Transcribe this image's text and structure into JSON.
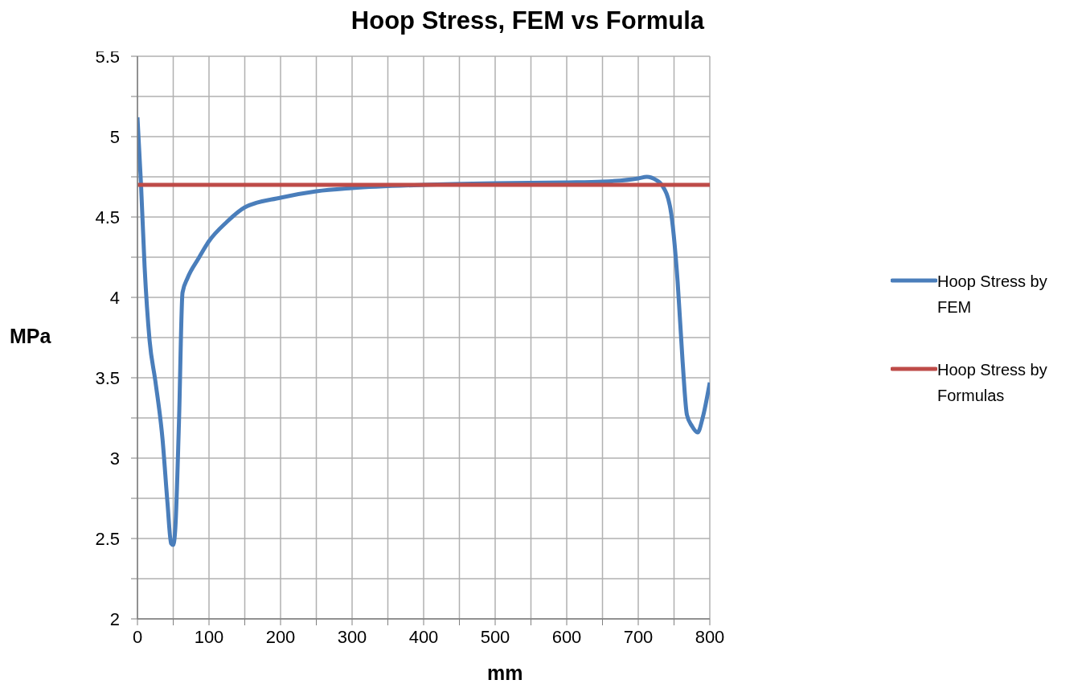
{
  "chart_data": {
    "type": "line",
    "title": "Hoop Stress, FEM vs Formula",
    "xlabel": "mm",
    "ylabel": "MPa",
    "xlim": [
      0,
      800
    ],
    "xticks": [
      0,
      {
        "value": 50,
        "label": null
      },
      100,
      {
        "value": 150,
        "label": null
      },
      200,
      {
        "value": 250,
        "label": null
      },
      300,
      {
        "value": 350,
        "label": null
      },
      400,
      {
        "value": 450,
        "label": null
      },
      500,
      {
        "value": 550,
        "label": null
      },
      600,
      {
        "value": 650,
        "label": null
      },
      700,
      {
        "value": 750,
        "label": null
      },
      800
    ],
    "ylim": [
      2,
      5.5
    ],
    "yticks": [
      2,
      {
        "value": 2.25,
        "label": null
      },
      2.5,
      {
        "value": 2.75,
        "label": null
      },
      3,
      {
        "value": 3.25,
        "label": null
      },
      3.5,
      {
        "value": 3.75,
        "label": null
      },
      4,
      {
        "value": 4.25,
        "label": null
      },
      4.5,
      {
        "value": 4.75,
        "label": null
      },
      5,
      {
        "value": 5.25,
        "label": null
      },
      5.5
    ],
    "grid": true,
    "legend": "right",
    "marker": "none",
    "line_style": "solid",
    "series": [
      {
        "name": "Hoop Stress by FEM",
        "color": "#4a7ebb",
        "x": [
          0,
          5,
          10,
          17,
          25,
          35,
          42,
          47,
          50,
          53,
          58,
          63,
          70,
          85,
          100,
          125,
          150,
          200,
          250,
          300,
          400,
          500,
          600,
          650,
          700,
          712,
          725,
          733,
          745,
          755,
          762,
          768,
          775,
          783,
          790,
          800
        ],
        "values": [
          5.12,
          4.7,
          4.19,
          3.73,
          3.48,
          3.12,
          2.72,
          2.47,
          2.46,
          2.57,
          3.22,
          4.03,
          4.12,
          4.24,
          4.35,
          4.47,
          4.56,
          4.62,
          4.66,
          4.68,
          4.7,
          4.71,
          4.715,
          4.72,
          4.74,
          4.75,
          4.73,
          4.7,
          4.55,
          4.1,
          3.6,
          3.27,
          3.2,
          3.16,
          3.25,
          3.47
        ]
      },
      {
        "name": "Hoop Stress by Formulas",
        "color": "#be4b48",
        "x": [
          0,
          800
        ],
        "values": [
          4.7,
          4.7
        ]
      }
    ]
  }
}
